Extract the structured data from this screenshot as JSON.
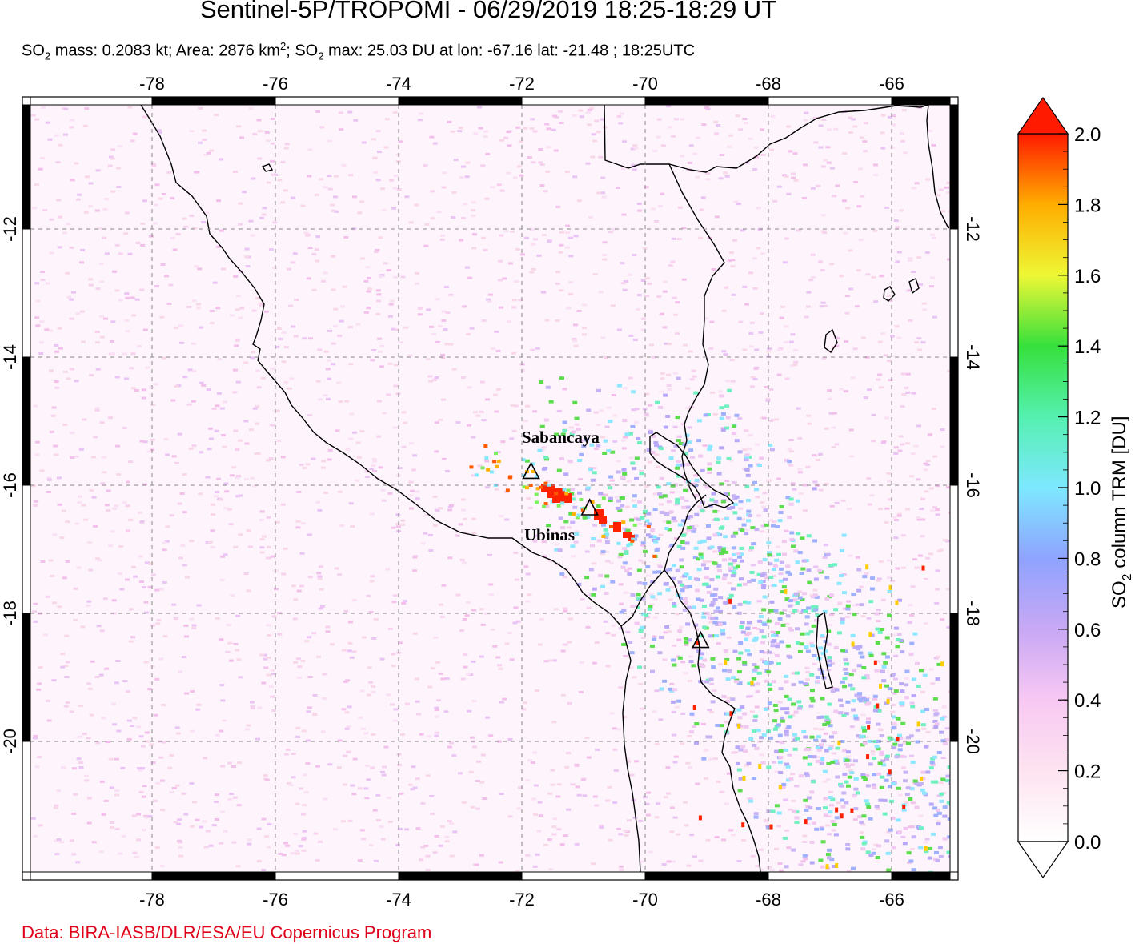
{
  "title": "Sentinel-5P/TROPOMI - 06/29/2019 18:25-18:29 UT",
  "subtitle": {
    "mass_prefix": "SO",
    "mass_sub": "2",
    "mass_text": " mass: 0.2083 kt; Area: 2876 km",
    "area_sup": "2",
    "max_prefix": "; SO",
    "max_sub": "2",
    "max_text": " max: 25.03 DU at lon: -67.16 lat: -21.48 ; 18:25UTC"
  },
  "credit": "Data: BIRA-IASB/DLR/ESA/EU Copernicus Program",
  "map": {
    "lon_ticks": [
      "-78",
      "-76",
      "-74",
      "-72",
      "-70",
      "-68",
      "-66"
    ],
    "lat_ticks": [
      "-12",
      "-14",
      "-16",
      "-18",
      "-20"
    ],
    "lon_values": [
      -78,
      -76,
      -74,
      -72,
      -70,
      -68,
      -66
    ],
    "lat_values": [
      -12,
      -14,
      -16,
      -18,
      -20
    ],
    "lon_range": [
      -80,
      -65
    ],
    "lat_range": [
      -22.1,
      -9.9
    ],
    "volcanoes": [
      {
        "name": "Sabancaya",
        "lon": -71.85,
        "lat": -15.78
      },
      {
        "name": "Ubinas",
        "lon": -70.9,
        "lat": -16.35
      },
      {
        "name": "",
        "lon": -69.1,
        "lat": -18.42
      }
    ],
    "colors": {
      "coast": "#000000",
      "grid": "#777777",
      "plume": "#ff2200"
    }
  },
  "colorbar": {
    "ticks": [
      "2.0",
      "1.8",
      "1.6",
      "1.4",
      "1.2",
      "1.0",
      "0.8",
      "0.6",
      "0.4",
      "0.2",
      "0.0"
    ],
    "label_prefix": "SO",
    "label_sub": "2",
    "label_text": " column TRM [DU]",
    "range": [
      0.0,
      2.0
    ]
  }
}
